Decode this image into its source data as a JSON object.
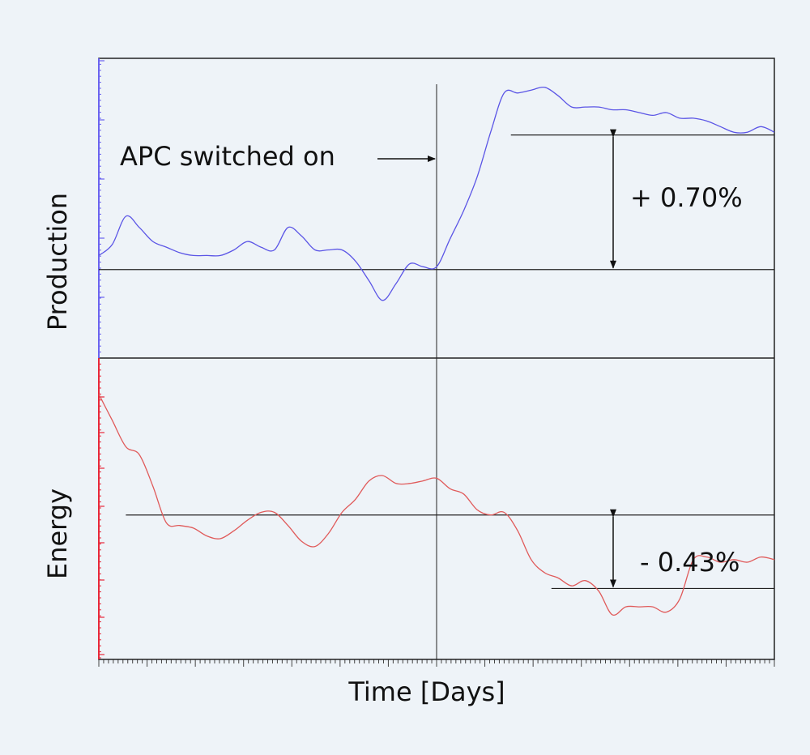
{
  "colors": {
    "background": "#eef3f8",
    "production_line": "#5b55e6",
    "energy_line": "#e05a5a",
    "axis_black": "#222222",
    "prod_axis": "#6b63f0",
    "energy_axis": "#e8283a"
  },
  "chart_data": {
    "type": "line",
    "title": "",
    "xlabel": "Time [Days]",
    "x_range": [
      0,
      100
    ],
    "event": {
      "label": "APC switched on",
      "x": 50
    },
    "panels": [
      {
        "name": "production",
        "ylabel": "Production",
        "ylim": [
          0,
          100
        ],
        "series": [
          {
            "name": "Production",
            "x": [
              0,
              2,
              4,
              6,
              8,
              10,
              12,
              14,
              16,
              18,
              20,
              22,
              24,
              26,
              28,
              30,
              32,
              34,
              36,
              38,
              40,
              42,
              44,
              46,
              48,
              50,
              52,
              54,
              56,
              58,
              60,
              62,
              64,
              66,
              68,
              70,
              72,
              74,
              76,
              78,
              80,
              82,
              84,
              86,
              88,
              90,
              92,
              94,
              96,
              98,
              100
            ],
            "values": [
              36,
              40,
              50,
              46,
              41,
              39,
              37,
              36,
              36,
              36,
              38,
              41,
              39,
              38,
              46,
              43,
              38,
              38,
              38,
              34,
              27,
              20,
              26,
              33,
              32,
              32,
              42,
              52,
              64,
              80,
              94,
              94,
              95,
              96,
              93,
              89,
              89,
              89,
              88,
              88,
              87,
              86,
              87,
              85,
              85,
              84,
              82,
              80,
              80,
              82,
              80
            ]
          }
        ],
        "levels": [
          {
            "name": "before",
            "y": 31,
            "x_start": 0,
            "x_end": 100
          },
          {
            "name": "after",
            "y": 79,
            "x_start": 61,
            "x_end": 100
          }
        ],
        "annotation": {
          "text": "+ 0.70%"
        }
      },
      {
        "name": "energy",
        "ylabel": "Energy",
        "ylim": [
          0,
          100
        ],
        "series": [
          {
            "name": "Energy",
            "x": [
              0,
              2,
              4,
              6,
              8,
              10,
              12,
              14,
              16,
              18,
              20,
              22,
              24,
              26,
              28,
              30,
              32,
              34,
              36,
              38,
              40,
              42,
              44,
              46,
              48,
              50,
              52,
              54,
              56,
              58,
              60,
              62,
              64,
              66,
              68,
              70,
              72,
              74,
              76,
              78,
              80,
              82,
              84,
              86,
              88,
              90,
              92,
              94,
              96,
              98,
              100
            ],
            "values": [
              93,
              83,
              73,
              70,
              58,
              44,
              43,
              42,
              39,
              38,
              41,
              45,
              48,
              48,
              43,
              37,
              35,
              40,
              48,
              53,
              60,
              62,
              59,
              59,
              60,
              61,
              57,
              55,
              49,
              47,
              48,
              41,
              30,
              25,
              23,
              20,
              22,
              18,
              9,
              12,
              12,
              12,
              10,
              15,
              30,
              31,
              29,
              30,
              29,
              31,
              30
            ]
          }
        ],
        "levels": [
          {
            "name": "before",
            "y": 47,
            "x_start": 4,
            "x_end": 100
          },
          {
            "name": "after",
            "y": 19,
            "x_start": 67,
            "x_end": 100
          }
        ],
        "annotation": {
          "text": "- 0.43%"
        }
      }
    ]
  }
}
